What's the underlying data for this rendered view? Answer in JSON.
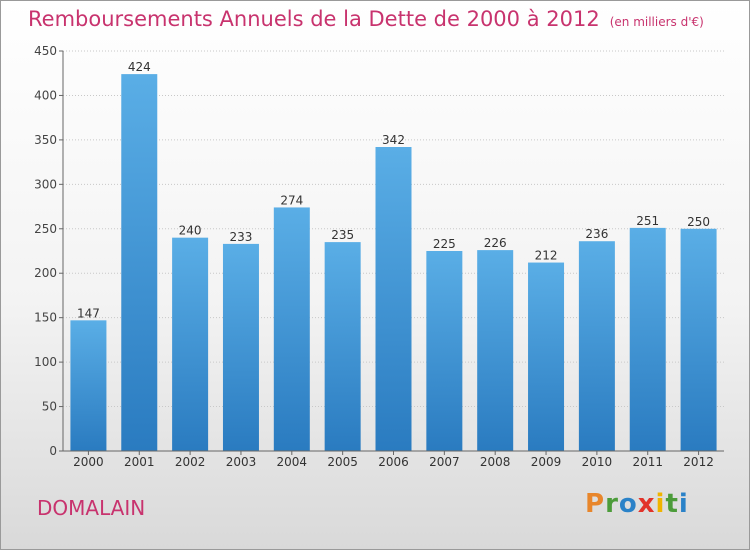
{
  "chart_data": {
    "type": "bar",
    "title": "Remboursements Annuels de la Dette de 2000 à 2012",
    "subtitle": "(en milliers d'€)",
    "categories": [
      "2000",
      "2001",
      "2002",
      "2003",
      "2004",
      "2005",
      "2006",
      "2007",
      "2008",
      "2009",
      "2010",
      "2011",
      "2012"
    ],
    "values": [
      147,
      424,
      240,
      233,
      274,
      235,
      342,
      225,
      226,
      212,
      236,
      251,
      250
    ],
    "ylim": [
      0,
      450
    ],
    "yticks": [
      0,
      50,
      100,
      150,
      200,
      250,
      300,
      350,
      400,
      450
    ],
    "grid": true,
    "legend": "none",
    "bar_color": "#3b8fd6"
  },
  "commune": "DOMALAIN",
  "logo": "Proxiti",
  "colors": {
    "title": "#c8336e",
    "bar_top": "#5aaee6",
    "bar_bottom": "#2a7bc0"
  }
}
